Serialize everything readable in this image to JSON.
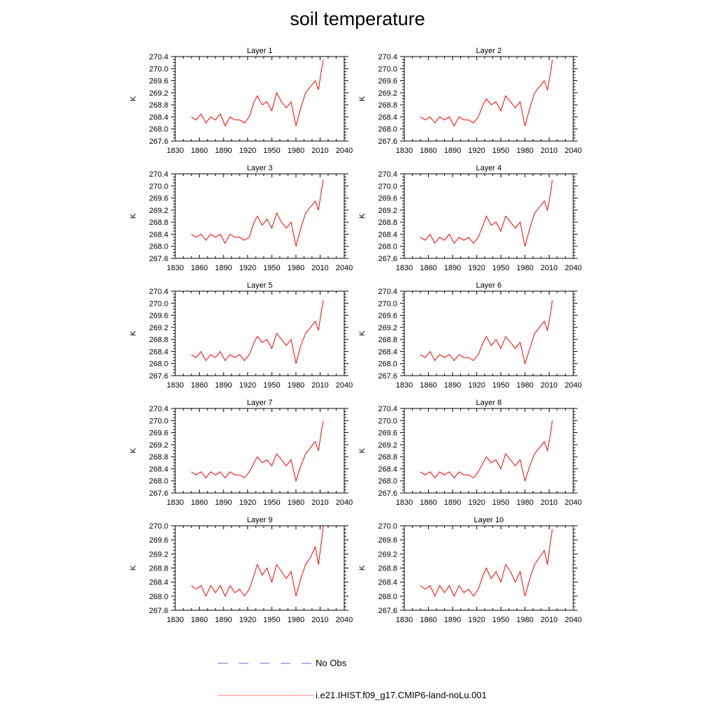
{
  "title": "soil temperature",
  "legend": {
    "no_obs_label": "No Obs",
    "model_label": "i.e21.IHIST.f09_g17.CMIP6-land-noLu.001",
    "no_obs_color": "#6666cc",
    "model_color": "#ff8080"
  },
  "chart_data": [
    {
      "type": "line",
      "title": "Layer 1",
      "ylabel": "K",
      "xlim": [
        1830,
        2040
      ],
      "ylim": [
        267.6,
        270.4
      ],
      "xticks": [
        1830,
        1860,
        1890,
        1920,
        1950,
        1980,
        2010,
        2040
      ],
      "yticks": [
        "267.6",
        "268.0",
        "268.4",
        "268.8",
        "269.2",
        "269.6",
        "270.0",
        "270.4"
      ],
      "series": [
        {
          "color": "#ff0000",
          "x": [
            1850,
            1856,
            1862,
            1868,
            1874,
            1880,
            1886,
            1892,
            1898,
            1904,
            1910,
            1916,
            1922,
            1928,
            1932,
            1938,
            1944,
            1950,
            1956,
            1962,
            1968,
            1974,
            1980,
            1986,
            1992,
            1998,
            2004,
            2008,
            2012,
            2014
          ],
          "values": [
            268.4,
            268.3,
            268.5,
            268.2,
            268.4,
            268.3,
            268.5,
            268.1,
            268.4,
            268.3,
            268.3,
            268.2,
            268.4,
            268.9,
            269.1,
            268.8,
            268.9,
            268.6,
            269.2,
            268.9,
            268.7,
            268.9,
            268.1,
            268.7,
            269.2,
            269.4,
            269.6,
            269.3,
            270.0,
            270.3
          ]
        }
      ]
    },
    {
      "type": "line",
      "title": "Layer 2",
      "ylabel": "K",
      "xlim": [
        1830,
        2040
      ],
      "ylim": [
        267.6,
        270.4
      ],
      "xticks": [
        1830,
        1860,
        1890,
        1920,
        1950,
        1980,
        2010,
        2040
      ],
      "yticks": [
        "267.6",
        "268.0",
        "268.4",
        "268.8",
        "269.2",
        "269.6",
        "270.0",
        "270.4"
      ],
      "series": [
        {
          "color": "#ff0000",
          "x": [
            1850,
            1856,
            1862,
            1868,
            1874,
            1880,
            1886,
            1892,
            1898,
            1904,
            1910,
            1916,
            1922,
            1928,
            1932,
            1938,
            1944,
            1950,
            1956,
            1962,
            1968,
            1974,
            1980,
            1986,
            1992,
            1998,
            2004,
            2008,
            2012,
            2014
          ],
          "values": [
            268.4,
            268.3,
            268.4,
            268.2,
            268.4,
            268.3,
            268.4,
            268.1,
            268.4,
            268.3,
            268.3,
            268.2,
            268.4,
            268.8,
            269.0,
            268.8,
            268.9,
            268.6,
            269.1,
            268.9,
            268.7,
            268.9,
            268.1,
            268.7,
            269.2,
            269.4,
            269.6,
            269.3,
            269.9,
            270.3
          ]
        }
      ]
    },
    {
      "type": "line",
      "title": "Layer 3",
      "ylabel": "K",
      "xlim": [
        1830,
        2040
      ],
      "ylim": [
        267.6,
        270.4
      ],
      "xticks": [
        1830,
        1860,
        1890,
        1920,
        1950,
        1980,
        2010,
        2040
      ],
      "yticks": [
        "267.6",
        "268.0",
        "268.4",
        "268.8",
        "269.2",
        "269.6",
        "270.0",
        "270.4"
      ],
      "series": [
        {
          "color": "#ff0000",
          "x": [
            1850,
            1856,
            1862,
            1868,
            1874,
            1880,
            1886,
            1892,
            1898,
            1904,
            1910,
            1916,
            1922,
            1928,
            1932,
            1938,
            1944,
            1950,
            1956,
            1962,
            1968,
            1974,
            1980,
            1986,
            1992,
            1998,
            2004,
            2008,
            2012,
            2014
          ],
          "values": [
            268.4,
            268.3,
            268.4,
            268.2,
            268.4,
            268.3,
            268.4,
            268.1,
            268.4,
            268.3,
            268.3,
            268.2,
            268.3,
            268.8,
            269.0,
            268.7,
            268.9,
            268.6,
            269.1,
            268.8,
            268.6,
            268.8,
            268.0,
            268.6,
            269.1,
            269.3,
            269.5,
            269.2,
            269.9,
            270.2
          ]
        }
      ]
    },
    {
      "type": "line",
      "title": "Layer 4",
      "ylabel": "K",
      "xlim": [
        1830,
        2040
      ],
      "ylim": [
        267.6,
        270.4
      ],
      "xticks": [
        1830,
        1860,
        1890,
        1920,
        1950,
        1980,
        2010,
        2040
      ],
      "yticks": [
        "267.6",
        "268.0",
        "268.4",
        "268.8",
        "269.2",
        "269.6",
        "270.0",
        "270.4"
      ],
      "series": [
        {
          "color": "#ff0000",
          "x": [
            1850,
            1856,
            1862,
            1868,
            1874,
            1880,
            1886,
            1892,
            1898,
            1904,
            1910,
            1916,
            1922,
            1928,
            1932,
            1938,
            1944,
            1950,
            1956,
            1962,
            1968,
            1974,
            1980,
            1986,
            1992,
            1998,
            2004,
            2008,
            2012,
            2014
          ],
          "values": [
            268.3,
            268.2,
            268.4,
            268.1,
            268.3,
            268.2,
            268.4,
            268.1,
            268.3,
            268.2,
            268.3,
            268.1,
            268.3,
            268.7,
            269.0,
            268.7,
            268.8,
            268.5,
            269.0,
            268.8,
            268.6,
            268.8,
            268.0,
            268.6,
            269.1,
            269.3,
            269.5,
            269.2,
            269.8,
            270.2
          ]
        }
      ]
    },
    {
      "type": "line",
      "title": "Layer 5",
      "ylabel": "K",
      "xlim": [
        1830,
        2040
      ],
      "ylim": [
        267.6,
        270.4
      ],
      "xticks": [
        1830,
        1860,
        1890,
        1920,
        1950,
        1980,
        2010,
        2040
      ],
      "yticks": [
        "267.6",
        "268.0",
        "268.4",
        "268.8",
        "269.2",
        "269.6",
        "270.0",
        "270.4"
      ],
      "series": [
        {
          "color": "#ff0000",
          "x": [
            1850,
            1856,
            1862,
            1868,
            1874,
            1880,
            1886,
            1892,
            1898,
            1904,
            1910,
            1916,
            1922,
            1928,
            1932,
            1938,
            1944,
            1950,
            1956,
            1962,
            1968,
            1974,
            1980,
            1986,
            1992,
            1998,
            2004,
            2008,
            2012,
            2014
          ],
          "values": [
            268.3,
            268.2,
            268.4,
            268.1,
            268.3,
            268.2,
            268.4,
            268.1,
            268.3,
            268.2,
            268.3,
            268.1,
            268.3,
            268.7,
            268.9,
            268.7,
            268.8,
            268.5,
            269.0,
            268.8,
            268.6,
            268.8,
            268.0,
            268.6,
            269.0,
            269.2,
            269.4,
            269.1,
            269.8,
            270.1
          ]
        }
      ]
    },
    {
      "type": "line",
      "title": "Layer 6",
      "ylabel": "K",
      "xlim": [
        1830,
        2040
      ],
      "ylim": [
        267.6,
        270.4
      ],
      "xticks": [
        1830,
        1860,
        1890,
        1920,
        1950,
        1980,
        2010,
        2040
      ],
      "yticks": [
        "267.6",
        "268.0",
        "268.4",
        "268.8",
        "269.2",
        "269.6",
        "270.0",
        "270.4"
      ],
      "series": [
        {
          "color": "#ff0000",
          "x": [
            1850,
            1856,
            1862,
            1868,
            1874,
            1880,
            1886,
            1892,
            1898,
            1904,
            1910,
            1916,
            1922,
            1928,
            1932,
            1938,
            1944,
            1950,
            1956,
            1962,
            1968,
            1974,
            1980,
            1986,
            1992,
            1998,
            2004,
            2008,
            2012,
            2014
          ],
          "values": [
            268.3,
            268.2,
            268.4,
            268.1,
            268.3,
            268.2,
            268.3,
            268.1,
            268.3,
            268.2,
            268.2,
            268.1,
            268.3,
            268.7,
            268.9,
            268.6,
            268.8,
            268.5,
            268.9,
            268.7,
            268.5,
            268.7,
            268.0,
            268.5,
            269.0,
            269.2,
            269.4,
            269.1,
            269.7,
            270.1
          ]
        }
      ]
    },
    {
      "type": "line",
      "title": "Layer 7",
      "ylabel": "K",
      "xlim": [
        1830,
        2040
      ],
      "ylim": [
        267.6,
        270.4
      ],
      "xticks": [
        1830,
        1860,
        1890,
        1920,
        1950,
        1980,
        2010,
        2040
      ],
      "yticks": [
        "267.6",
        "268.0",
        "268.4",
        "268.8",
        "269.2",
        "269.6",
        "270.0",
        "270.4"
      ],
      "series": [
        {
          "color": "#ff0000",
          "x": [
            1850,
            1856,
            1862,
            1868,
            1874,
            1880,
            1886,
            1892,
            1898,
            1904,
            1910,
            1916,
            1922,
            1928,
            1932,
            1938,
            1944,
            1950,
            1956,
            1962,
            1968,
            1974,
            1980,
            1986,
            1992,
            1998,
            2004,
            2008,
            2012,
            2014
          ],
          "values": [
            268.3,
            268.2,
            268.3,
            268.1,
            268.3,
            268.2,
            268.3,
            268.1,
            268.3,
            268.2,
            268.2,
            268.1,
            268.3,
            268.6,
            268.8,
            268.6,
            268.7,
            268.5,
            268.9,
            268.7,
            268.5,
            268.7,
            268.0,
            268.5,
            268.9,
            269.1,
            269.3,
            269.0,
            269.7,
            270.0
          ]
        }
      ]
    },
    {
      "type": "line",
      "title": "Layer 8",
      "ylabel": "K",
      "xlim": [
        1830,
        2040
      ],
      "ylim": [
        267.6,
        270.4
      ],
      "xticks": [
        1830,
        1860,
        1890,
        1920,
        1950,
        1980,
        2010,
        2040
      ],
      "yticks": [
        "267.6",
        "268.0",
        "268.4",
        "268.8",
        "269.2",
        "269.6",
        "270.0",
        "270.4"
      ],
      "series": [
        {
          "color": "#ff0000",
          "x": [
            1850,
            1856,
            1862,
            1868,
            1874,
            1880,
            1886,
            1892,
            1898,
            1904,
            1910,
            1916,
            1922,
            1928,
            1932,
            1938,
            1944,
            1950,
            1956,
            1962,
            1968,
            1974,
            1980,
            1986,
            1992,
            1998,
            2004,
            2008,
            2012,
            2014
          ],
          "values": [
            268.3,
            268.2,
            268.3,
            268.1,
            268.3,
            268.2,
            268.3,
            268.1,
            268.3,
            268.2,
            268.2,
            268.1,
            268.3,
            268.6,
            268.8,
            268.6,
            268.7,
            268.4,
            268.9,
            268.7,
            268.5,
            268.7,
            268.0,
            268.5,
            268.9,
            269.1,
            269.3,
            269.0,
            269.6,
            270.0
          ]
        }
      ]
    },
    {
      "type": "line",
      "title": "Layer 9",
      "ylabel": "K",
      "xlim": [
        1830,
        2040
      ],
      "ylim": [
        267.6,
        270.0
      ],
      "xticks": [
        1830,
        1860,
        1890,
        1920,
        1950,
        1980,
        2010,
        2040
      ],
      "yticks": [
        "267.6",
        "268.0",
        "268.4",
        "268.8",
        "269.2",
        "269.6",
        "270.0"
      ],
      "series": [
        {
          "color": "#ff0000",
          "x": [
            1850,
            1856,
            1862,
            1868,
            1874,
            1880,
            1886,
            1892,
            1898,
            1904,
            1910,
            1916,
            1922,
            1928,
            1932,
            1938,
            1944,
            1950,
            1956,
            1962,
            1968,
            1974,
            1980,
            1986,
            1992,
            1998,
            2004,
            2008,
            2012,
            2014
          ],
          "values": [
            268.3,
            268.2,
            268.3,
            268.0,
            268.3,
            268.1,
            268.3,
            268.0,
            268.3,
            268.1,
            268.2,
            268.0,
            268.2,
            268.6,
            268.9,
            268.6,
            268.8,
            268.4,
            268.9,
            268.7,
            268.5,
            268.7,
            268.0,
            268.5,
            268.9,
            269.1,
            269.4,
            268.9,
            269.6,
            270.0
          ]
        }
      ]
    },
    {
      "type": "line",
      "title": "Layer 10",
      "ylabel": "K",
      "xlim": [
        1830,
        2040
      ],
      "ylim": [
        267.6,
        270.0
      ],
      "xticks": [
        1830,
        1860,
        1890,
        1920,
        1950,
        1980,
        2010,
        2040
      ],
      "yticks": [
        "267.6",
        "268.0",
        "268.4",
        "268.8",
        "269.2",
        "269.6",
        "270.0"
      ],
      "series": [
        {
          "color": "#ff0000",
          "x": [
            1850,
            1856,
            1862,
            1868,
            1874,
            1880,
            1886,
            1892,
            1898,
            1904,
            1910,
            1916,
            1922,
            1928,
            1932,
            1938,
            1944,
            1950,
            1956,
            1962,
            1968,
            1974,
            1980,
            1986,
            1992,
            1998,
            2004,
            2008,
            2012,
            2014
          ],
          "values": [
            268.3,
            268.2,
            268.3,
            268.0,
            268.3,
            268.1,
            268.3,
            268.0,
            268.3,
            268.1,
            268.2,
            268.0,
            268.2,
            268.6,
            268.8,
            268.5,
            268.7,
            268.4,
            268.9,
            268.7,
            268.4,
            268.7,
            268.0,
            268.5,
            268.9,
            269.1,
            269.3,
            268.9,
            269.6,
            269.9
          ]
        }
      ]
    }
  ]
}
